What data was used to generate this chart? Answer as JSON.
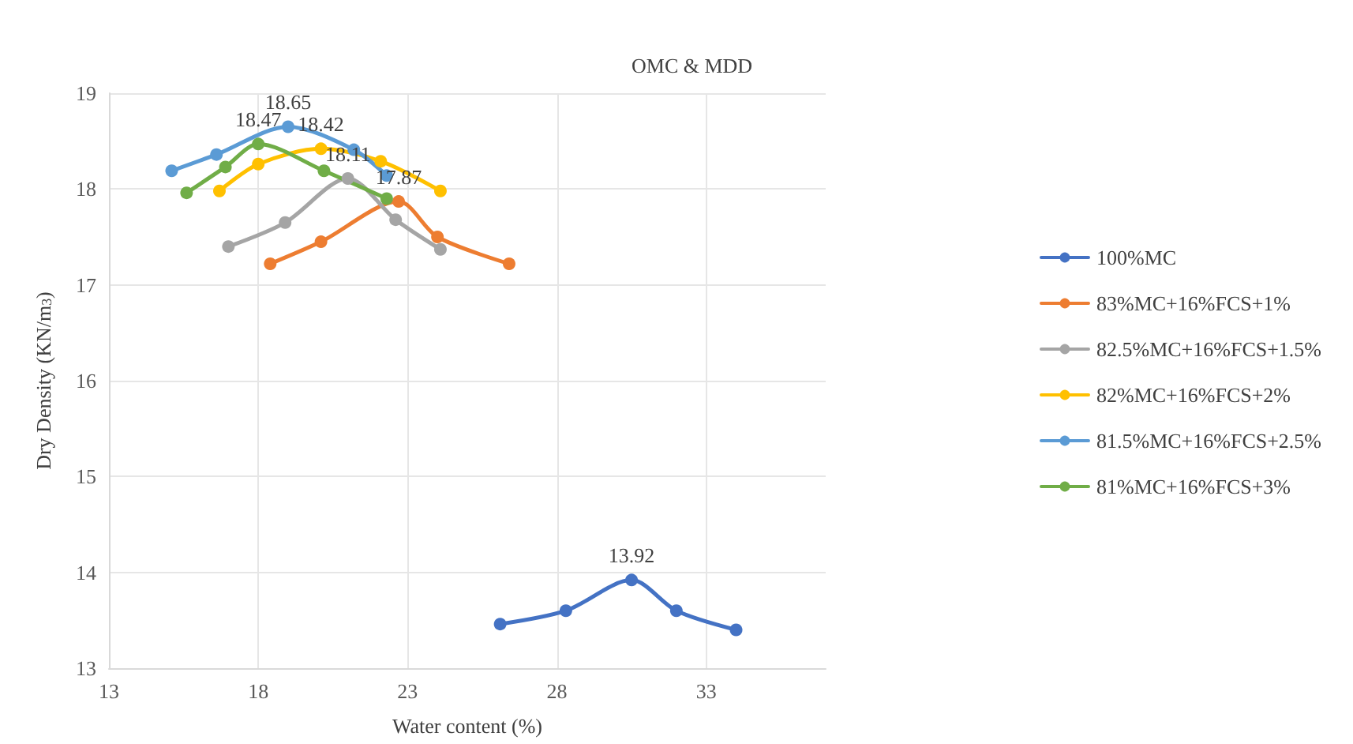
{
  "chart_data": {
    "type": "line",
    "title": "OMC & MDD",
    "xlabel": "Water content (%)",
    "ylabel": "Dry Density (KN/m$^{3}$)",
    "xlim": [
      13,
      37
    ],
    "xticks": [
      13,
      18,
      23,
      28,
      33
    ],
    "ylim": [
      13,
      19
    ],
    "yticks": [
      13,
      14,
      15,
      16,
      17,
      18,
      19
    ],
    "grid": true,
    "legend": "right",
    "marker": "circle",
    "line_style": "solid",
    "series": [
      {
        "name": "100%MC",
        "color": "#4472c4",
        "x": [
          26.1,
          28.3,
          30.5,
          32.0,
          34.0
        ],
        "values": [
          13.46,
          13.6,
          13.92,
          13.6,
          13.4
        ],
        "value_labels": [
          null,
          null,
          "13.92",
          null,
          null
        ]
      },
      {
        "name": "83%MC+16%FCS+1%",
        "color": "#ed7d31",
        "x": [
          18.4,
          20.1,
          22.7,
          24.0,
          26.4
        ],
        "values": [
          17.22,
          17.45,
          17.87,
          17.5,
          17.22
        ],
        "value_labels": [
          null,
          null,
          "17.87",
          null,
          null
        ]
      },
      {
        "name": "82.5%MC+16%FCS+1.5%",
        "color": "#a5a5a5",
        "x": [
          17.0,
          18.9,
          21.0,
          22.6,
          24.1
        ],
        "values": [
          17.4,
          17.65,
          18.11,
          17.68,
          17.37
        ],
        "value_labels": [
          null,
          null,
          "18.11",
          null,
          null
        ]
      },
      {
        "name": "82%MC+16%FCS+2%",
        "color": "#ffc000",
        "x": [
          16.7,
          18.0,
          20.1,
          22.1,
          24.1
        ],
        "values": [
          17.98,
          18.26,
          18.42,
          18.29,
          17.98
        ],
        "value_labels": [
          null,
          null,
          "18.42",
          null,
          null
        ]
      },
      {
        "name": "81.5%MC+16%FCS+2.5%",
        "color": "#5b9bd5",
        "x": [
          15.1,
          16.6,
          19.0,
          21.2,
          22.3
        ],
        "values": [
          18.19,
          18.36,
          18.65,
          18.41,
          18.14
        ],
        "value_labels": [
          null,
          null,
          "18.65",
          null,
          null
        ]
      },
      {
        "name": "81%MC+16%FCS+3%",
        "color": "#70ad47",
        "x": [
          15.6,
          16.9,
          18.0,
          20.2,
          22.3
        ],
        "values": [
          17.96,
          18.23,
          18.47,
          18.19,
          17.9
        ],
        "value_labels": [
          null,
          null,
          "18.47",
          null,
          null
        ]
      }
    ]
  }
}
